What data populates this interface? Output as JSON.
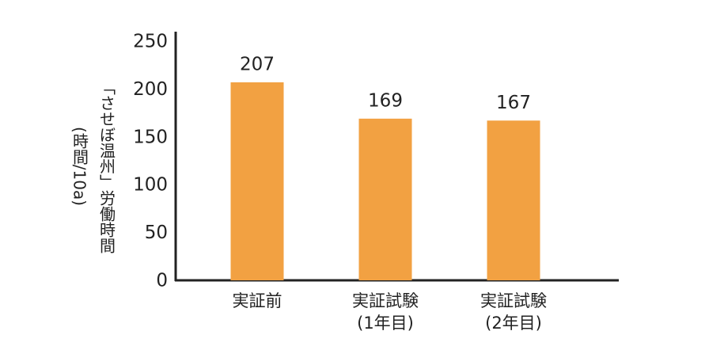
{
  "chart_data": {
    "type": "bar",
    "y_label": "「させぼ温州」労働時間\n(時間/10a)",
    "categories": [
      "実証前",
      "実証試験\n(1年目)",
      "実証試験\n(2年目)"
    ],
    "values": [
      207,
      169,
      167
    ],
    "color": "#f2a142",
    "ylim": [
      0,
      250
    ],
    "yticks": [
      0,
      50,
      100,
      150,
      200,
      250
    ],
    "grid": false
  }
}
